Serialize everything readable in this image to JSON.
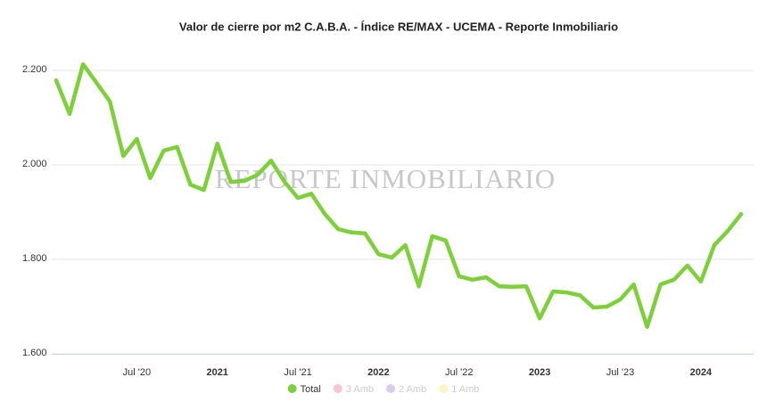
{
  "chart_data": {
    "type": "line",
    "title": "Valor de cierre por m2 C.A.B.A. - Índice RE/MAX - UCEMA - Reporte Inmobiliario",
    "watermark": "REPORTE INMOBILIARIO",
    "categories": [
      null,
      null,
      null,
      null,
      null,
      null,
      "Jul '20",
      null,
      null,
      null,
      null,
      null,
      "2021",
      null,
      null,
      null,
      null,
      null,
      "Jul '21",
      null,
      null,
      null,
      null,
      null,
      "2022",
      null,
      null,
      null,
      null,
      null,
      "Jul '22",
      null,
      null,
      null,
      null,
      null,
      "2023",
      null,
      null,
      null,
      null,
      null,
      "Jul '23",
      null,
      null,
      null,
      null,
      null,
      "2024",
      null,
      null,
      null
    ],
    "series": [
      {
        "name": "Total",
        "color": "#7ed03b",
        "values": [
          2179,
          2108,
          2213,
          2174,
          2134,
          2019,
          2055,
          1972,
          2030,
          2038,
          1958,
          1947,
          2045,
          1964,
          1966,
          1979,
          2009,
          1964,
          1930,
          1939,
          1896,
          1864,
          1857,
          1855,
          1811,
          1804,
          1830,
          1743,
          1849,
          1840,
          1764,
          1757,
          1762,
          1743,
          1742,
          1743,
          1675,
          1732,
          1730,
          1724,
          1698,
          1700,
          1715,
          1747,
          1657,
          1747,
          1757,
          1787,
          1753,
          1830,
          1860,
          1896
        ]
      }
    ],
    "hidden_series": [
      {
        "name": "3 Amb",
        "color": "#f5c6d8"
      },
      {
        "name": "2 Amb",
        "color": "#dccbec"
      },
      {
        "name": "1 Amb",
        "color": "#fbf4c4"
      }
    ],
    "ylim": [
      1600,
      2250
    ],
    "yticks": [
      {
        "value": 1600,
        "label": "1.600"
      },
      {
        "value": 1800,
        "label": "1.800"
      },
      {
        "value": 2000,
        "label": "2.000"
      },
      {
        "value": 2200,
        "label": "2.200"
      }
    ],
    "grid": true
  }
}
